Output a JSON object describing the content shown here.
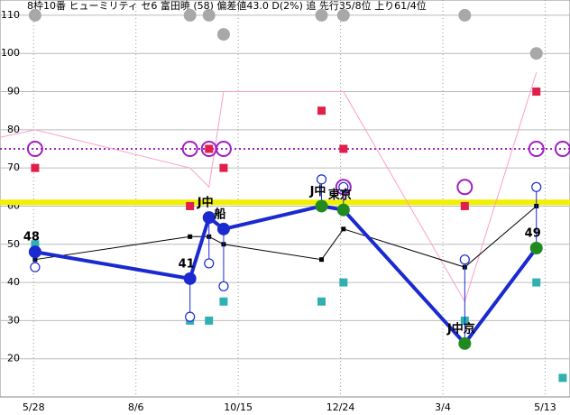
{
  "chart_data": {
    "type": "line",
    "title": "8枠10番 ヒューミリティ セ6 富田暁 (58) 偏差値43.0 D(2%) 追 先行35/8位 上り61/4位",
    "xlim": [
      -23,
      367
    ],
    "ylim": [
      10,
      114
    ],
    "xticks": [
      {
        "value": 0,
        "label": "5/28"
      },
      {
        "value": 70,
        "label": "8/6"
      },
      {
        "value": 140,
        "label": "10/15"
      },
      {
        "value": 210,
        "label": "12/24"
      },
      {
        "value": 280,
        "label": "3/4"
      },
      {
        "value": 350,
        "label": "5/13"
      }
    ],
    "yticks": [
      20,
      30,
      40,
      50,
      60,
      70,
      80,
      90,
      100,
      110
    ],
    "grid": true,
    "reference_lines": [
      {
        "value": 75,
        "color": "#a020c0",
        "style": "dotted"
      },
      {
        "value": 61,
        "color": "#f0f000",
        "style": "thick"
      }
    ],
    "series": [
      {
        "style": "thin-line",
        "color": "#ff9ec8",
        "x": [
          -23,
          1,
          107,
          120,
          130,
          197,
          212,
          295,
          344
        ],
        "values": [
          78,
          80,
          70,
          65,
          90,
          90,
          90,
          35,
          95
        ]
      },
      {
        "style": "line-squares",
        "color": "#000000",
        "x": [
          1,
          107,
          120,
          130,
          197,
          212,
          295,
          344
        ],
        "values": [
          46,
          52,
          52,
          50,
          46,
          54,
          44,
          60
        ]
      },
      {
        "style": "squares",
        "color": "#e0204a",
        "x": [
          1,
          107,
          120,
          130,
          197,
          212,
          295,
          344
        ],
        "values": [
          70,
          60,
          75,
          70,
          85,
          75,
          60,
          90
        ]
      },
      {
        "style": "squares",
        "color": "#30b0b0",
        "x": [
          1,
          107,
          120,
          130,
          197,
          212,
          295,
          344,
          362
        ],
        "values": [
          50,
          30,
          30,
          35,
          35,
          40,
          30,
          40,
          15
        ]
      },
      {
        "style": "filled-circles",
        "color": "#a8a8a8",
        "x": [
          1,
          107,
          120,
          130,
          197,
          212,
          295,
          344
        ],
        "values": [
          110,
          110,
          110,
          105,
          110,
          110,
          110,
          100
        ]
      },
      {
        "style": "open-circles",
        "color": "#a020c0",
        "x": [
          1,
          107,
          120,
          130,
          212,
          295,
          344,
          362
        ],
        "values": [
          75,
          75,
          75,
          75,
          65,
          65,
          75,
          75
        ]
      },
      {
        "style": "open-circles-small",
        "color": "#1a2ad0",
        "x": [
          1,
          107,
          120,
          130,
          197,
          212,
          295,
          344
        ],
        "values": [
          44,
          31,
          45,
          39,
          67,
          65,
          46,
          65
        ]
      },
      {
        "style": "main",
        "color": "#1a2ad0",
        "x": [
          1,
          107,
          120,
          130,
          197,
          212,
          295,
          344
        ],
        "values": [
          48,
          41,
          57,
          54,
          60,
          59,
          24,
          49
        ],
        "marker_colors": [
          "#1a2ad0",
          "#1a2ad0",
          "#1a2ad0",
          "#1a2ad0",
          "#208a20",
          "#208a20",
          "#208a20",
          "#208a20"
        ],
        "point_labels": [
          "48",
          "41",
          "J中",
          "船",
          "J中",
          "東京",
          "J中京",
          "49"
        ]
      }
    ]
  }
}
